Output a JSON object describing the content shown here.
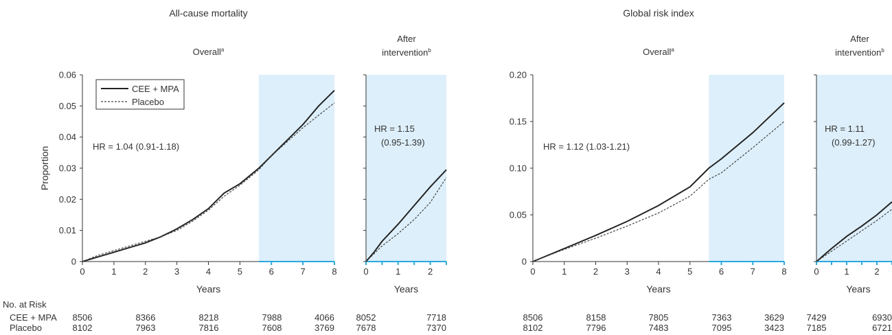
{
  "risk_header": "No. at Risk",
  "risk_rows": [
    {
      "label": "CEE + MPA",
      "left": [
        "8506",
        "8366",
        "8218",
        "7988",
        "4066"
      ],
      "left_after": [
        "8052",
        "7718"
      ],
      "right": [
        "8506",
        "8158",
        "7805",
        "7363",
        "3629"
      ],
      "right_after": [
        "7429",
        "6930"
      ]
    },
    {
      "label": "Placebo",
      "left": [
        "8102",
        "7963",
        "7816",
        "7608",
        "3769"
      ],
      "left_after": [
        "7678",
        "7370"
      ],
      "right": [
        "8102",
        "7796",
        "7483",
        "7095",
        "3423"
      ],
      "right_after": [
        "7185",
        "6721"
      ]
    }
  ],
  "colors": {
    "intervention_shade": "#ddeffa",
    "axis_highlight": "#29a8e0",
    "cee_line": "#222222",
    "placebo_line": "#444444"
  },
  "chart_data": [
    {
      "type": "line",
      "title": "All-cause mortality",
      "subtitle": "Overall",
      "subtitle_sup": "a",
      "xlabel": "Years",
      "ylabel": "Proportion",
      "xlim": [
        0,
        8
      ],
      "ylim": [
        0,
        0.06
      ],
      "xticks": [
        "0",
        "1",
        "2",
        "3",
        "4",
        "5",
        "6",
        "7",
        "8"
      ],
      "yticks": [
        "0",
        "0.01",
        "0.02",
        "0.03",
        "0.04",
        "0.05",
        "0.06"
      ],
      "yvals": [
        0,
        0.01,
        0.02,
        0.03,
        0.04,
        0.05,
        0.06
      ],
      "shaded_x": [
        5.6,
        8
      ],
      "annotation": "HR = 1.04 (0.91-1.18)",
      "legend": [
        "CEE + MPA",
        "Placebo"
      ],
      "series": [
        {
          "name": "CEE + MPA",
          "x": [
            0,
            0.5,
            1,
            1.5,
            2,
            2.5,
            3,
            3.5,
            4,
            4.5,
            5,
            5.6,
            6,
            6.5,
            7,
            7.5,
            8
          ],
          "y": [
            0,
            0.0015,
            0.003,
            0.0045,
            0.006,
            0.008,
            0.0105,
            0.0135,
            0.017,
            0.022,
            0.025,
            0.03,
            0.034,
            0.039,
            0.044,
            0.05,
            0.055
          ]
        },
        {
          "name": "Placebo",
          "x": [
            0,
            0.5,
            1,
            1.5,
            2,
            2.5,
            3,
            3.5,
            4,
            4.5,
            5,
            5.6,
            6,
            6.5,
            7,
            7.5,
            8
          ],
          "y": [
            0,
            0.002,
            0.0035,
            0.005,
            0.0065,
            0.008,
            0.01,
            0.013,
            0.0165,
            0.021,
            0.0245,
            0.0295,
            0.034,
            0.0385,
            0.043,
            0.047,
            0.051
          ]
        }
      ]
    },
    {
      "type": "line",
      "title": "",
      "subtitle_lines": [
        "After",
        "intervention"
      ],
      "subtitle_sup": "b",
      "xlabel": "Years",
      "xlim": [
        0,
        2.5
      ],
      "ylim": [
        0,
        0.06
      ],
      "xticks": [
        "0",
        "1",
        "2"
      ],
      "xvals": [
        0,
        1,
        2
      ],
      "shaded_x": [
        0,
        2.5
      ],
      "annotation_lines": [
        "HR = 1.15",
        "(0.95-1.39)"
      ],
      "series": [
        {
          "name": "CEE + MPA",
          "x": [
            0,
            0.25,
            0.5,
            1,
            1.5,
            2,
            2.5
          ],
          "y": [
            0,
            0.003,
            0.0065,
            0.012,
            0.018,
            0.024,
            0.0295
          ]
        },
        {
          "name": "Placebo",
          "x": [
            0,
            0.25,
            0.5,
            1,
            1.5,
            2,
            2.5
          ],
          "y": [
            0,
            0.0025,
            0.005,
            0.009,
            0.0135,
            0.019,
            0.027
          ]
        }
      ]
    },
    {
      "type": "line",
      "title": "Global risk index",
      "subtitle": "Overall",
      "subtitle_sup": "a",
      "xlabel": "Years",
      "xlim": [
        0,
        8
      ],
      "ylim": [
        0,
        0.2
      ],
      "xticks": [
        "0",
        "1",
        "2",
        "3",
        "4",
        "5",
        "6",
        "7",
        "8"
      ],
      "yticks": [
        "0",
        "0.05",
        "0.10",
        "0.15",
        "0.20"
      ],
      "yvals": [
        0,
        0.05,
        0.1,
        0.15,
        0.2
      ],
      "shaded_x": [
        5.6,
        8
      ],
      "annotation": "HR = 1.12 (1.03-1.21)",
      "series": [
        {
          "name": "CEE + MPA",
          "x": [
            0,
            1,
            2,
            3,
            4,
            5,
            5.6,
            6,
            7,
            8
          ],
          "y": [
            0,
            0.014,
            0.028,
            0.043,
            0.06,
            0.08,
            0.1,
            0.11,
            0.138,
            0.17
          ]
        },
        {
          "name": "Placebo",
          "x": [
            0,
            1,
            2,
            3,
            4,
            5,
            5.6,
            6,
            7,
            8
          ],
          "y": [
            0,
            0.013,
            0.025,
            0.038,
            0.052,
            0.07,
            0.088,
            0.095,
            0.122,
            0.15
          ]
        }
      ]
    },
    {
      "type": "line",
      "title": "",
      "subtitle_lines": [
        "After",
        "intervention"
      ],
      "subtitle_sup": "b",
      "xlabel": "Years",
      "xlim": [
        0,
        2.5
      ],
      "ylim": [
        0,
        0.2
      ],
      "xticks": [
        "0",
        "1",
        "2"
      ],
      "xvals": [
        0,
        1,
        2
      ],
      "shaded_x": [
        0,
        2.5
      ],
      "annotation_lines": [
        "HR = 1.11",
        "(0.99-1.27)"
      ],
      "series": [
        {
          "name": "CEE + MPA",
          "x": [
            0,
            0.5,
            1,
            1.5,
            2,
            2.5
          ],
          "y": [
            0,
            0.014,
            0.027,
            0.038,
            0.05,
            0.064
          ]
        },
        {
          "name": "Placebo",
          "x": [
            0,
            0.5,
            1,
            1.5,
            2,
            2.5
          ],
          "y": [
            0,
            0.011,
            0.022,
            0.033,
            0.044,
            0.056
          ]
        }
      ]
    }
  ]
}
